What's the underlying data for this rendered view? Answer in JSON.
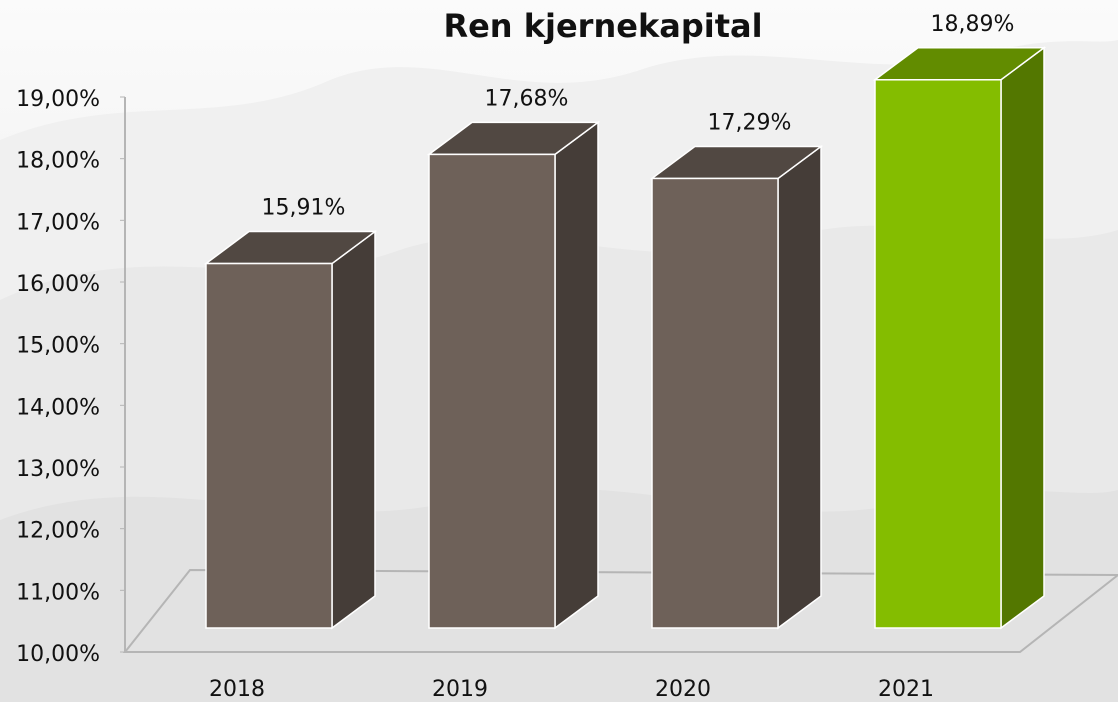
{
  "chart_data": {
    "type": "bar3d",
    "title": "Ren kjernekapital",
    "categories": [
      "2018",
      "2019",
      "2020",
      "2021"
    ],
    "values": [
      15.91,
      17.68,
      17.29,
      18.89
    ],
    "value_labels": [
      "15,91%",
      "17,68%",
      "17,29%",
      "18,89%"
    ],
    "colors": [
      "#6e6159",
      "#6e6159",
      "#6e6159",
      "#84bd00"
    ],
    "ylim": [
      10,
      19
    ],
    "yticks": [
      {
        "value": 10,
        "label": "10,00%"
      },
      {
        "value": 11,
        "label": "11,00%"
      },
      {
        "value": 12,
        "label": "12,00%"
      },
      {
        "value": 13,
        "label": "13,00%"
      },
      {
        "value": 14,
        "label": "14,00%"
      },
      {
        "value": 15,
        "label": "15,00%"
      },
      {
        "value": 16,
        "label": "16,00%"
      },
      {
        "value": 17,
        "label": "17,00%"
      },
      {
        "value": 18,
        "label": "18,00%"
      },
      {
        "value": 19,
        "label": "19,00%"
      }
    ]
  }
}
